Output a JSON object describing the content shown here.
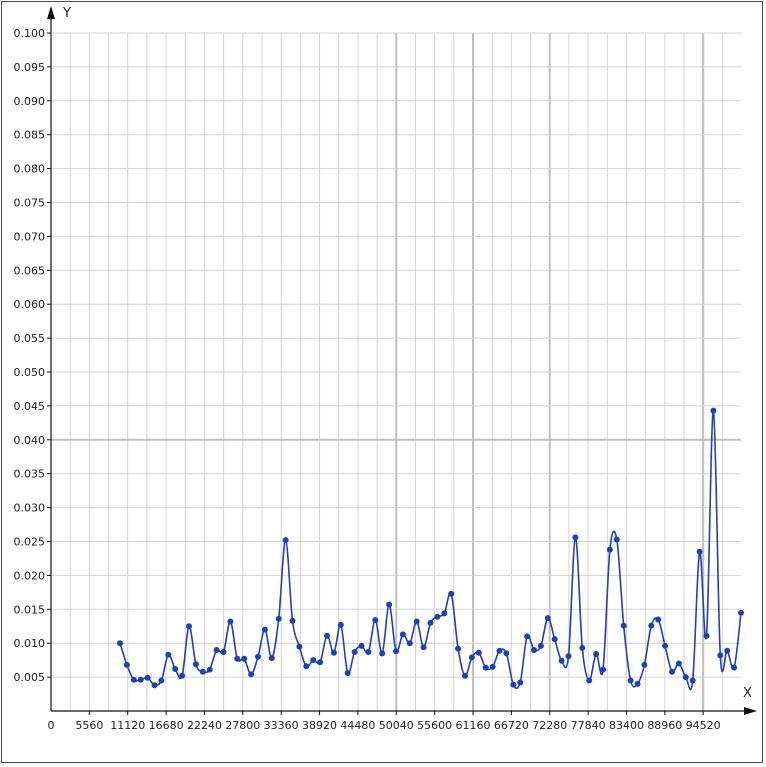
{
  "chart_data": {
    "type": "line",
    "title": "",
    "xlabel": "X",
    "ylabel": "Y",
    "origin_label": "0",
    "xlim": [
      0,
      100000
    ],
    "ylim": [
      0,
      0.1
    ],
    "x_ticks": [
      5560,
      11120,
      16680,
      22240,
      27800,
      33360,
      38920,
      44480,
      50040,
      55600,
      61160,
      66720,
      72280,
      77840,
      83400,
      88960,
      94520
    ],
    "y_ticks": [
      "0.005",
      "0.010",
      "0.015",
      "0.020",
      "0.025",
      "0.030",
      "0.035",
      "0.040",
      "0.045",
      "0.050",
      "0.055",
      "0.060",
      "0.065",
      "0.070",
      "0.075",
      "0.080",
      "0.085",
      "0.090",
      "0.095",
      "0.100"
    ],
    "grid": true,
    "line_color": "#2040b8",
    "series": [
      {
        "x": [
          10000,
          11000,
          12000,
          13000,
          14000,
          15000,
          16000,
          17000,
          18000,
          19000,
          20000,
          21000,
          22000,
          23000,
          24000,
          25000,
          26000,
          27000,
          28000,
          29000,
          30000,
          31000,
          32000,
          33000,
          34000,
          35000,
          36000,
          37000,
          38000,
          39000,
          40000,
          41000,
          42000,
          43000,
          44000,
          45000,
          46000,
          47000,
          48000,
          49000,
          50000,
          51000,
          52000,
          53000,
          54000,
          55000,
          56000,
          57000,
          58000,
          59000,
          60000,
          61000,
          62000,
          63000,
          64000,
          65000,
          66000,
          67000,
          68000,
          69000,
          70000,
          71000,
          72000,
          73000,
          74000,
          75000,
          76000,
          77000,
          78000,
          79000,
          80000,
          81000,
          82000,
          83000,
          84000,
          85000,
          86000,
          87000,
          88000,
          89000,
          90000,
          91000,
          92000,
          93000,
          94000,
          95000,
          96000,
          97000,
          98000,
          99000,
          100000
        ],
        "values": [
          0.01,
          0.0068,
          0.0046,
          0.0046,
          0.0049,
          0.0038,
          0.0045,
          0.0083,
          0.0062,
          0.0052,
          0.0125,
          0.0069,
          0.0058,
          0.0061,
          0.009,
          0.0087,
          0.0132,
          0.0077,
          0.0077,
          0.0054,
          0.008,
          0.012,
          0.0078,
          0.0136,
          0.0252,
          0.0133,
          0.0095,
          0.0066,
          0.0075,
          0.0072,
          0.0111,
          0.0086,
          0.0127,
          0.0056,
          0.0087,
          0.0096,
          0.0087,
          0.0134,
          0.0085,
          0.0157,
          0.0088,
          0.0113,
          0.01,
          0.0132,
          0.0094,
          0.013,
          0.0139,
          0.0144,
          0.0173,
          0.0092,
          0.0052,
          0.0079,
          0.0086,
          0.0064,
          0.0065,
          0.0089,
          0.0085,
          0.0039,
          0.0042,
          0.011,
          0.009,
          0.0096,
          0.0137,
          0.0106,
          0.0074,
          0.0081,
          0.0256,
          0.0093,
          0.0045,
          0.0084,
          0.0061,
          0.0238,
          0.0253,
          0.0126,
          0.0045,
          0.004,
          0.0068,
          0.0126,
          0.0135,
          0.0096,
          0.0058,
          0.007,
          0.005,
          0.0045,
          0.0235,
          0.0111,
          0.0443,
          0.0082,
          0.0089,
          0.0064,
          0.0145
        ]
      }
    ]
  }
}
